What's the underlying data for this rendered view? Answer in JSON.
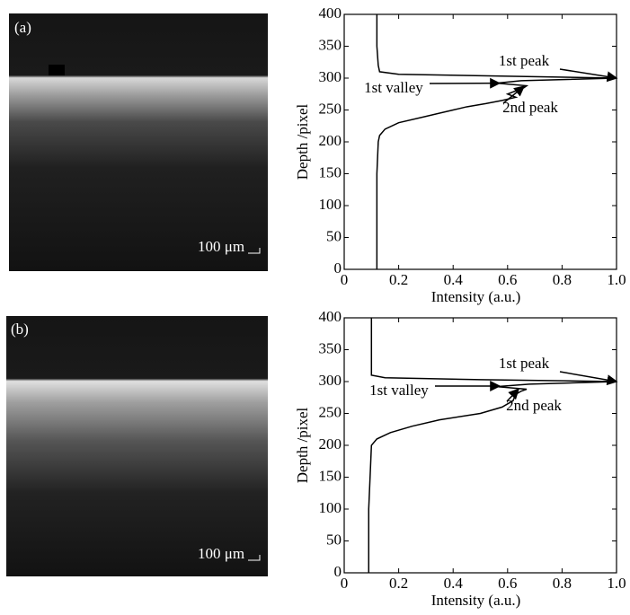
{
  "images": [
    {
      "label": "(a)",
      "scale_bar": "100 μm"
    },
    {
      "label": "(b)",
      "scale_bar": "100 μm"
    }
  ],
  "chart_data": [
    {
      "type": "line",
      "xlabel": "Intensity (a.u.)",
      "ylabel": "Depth /pixel",
      "xlim": [
        0,
        1
      ],
      "xticks": [
        0,
        0.2,
        0.4,
        0.6,
        0.8,
        {
          "value": 1,
          "label": "1.0"
        }
      ],
      "ylim": [
        0,
        400
      ],
      "yticks": [
        0,
        50,
        100,
        150,
        200,
        250,
        300,
        350,
        400
      ],
      "color": "#000000",
      "x": [
        0.12,
        0.12,
        0.12,
        0.12,
        0.125,
        0.13,
        0.15,
        0.2,
        0.3,
        0.4,
        0.45,
        0.52,
        0.58,
        0.63,
        0.6,
        0.63,
        0.66,
        0.67,
        0.56,
        0.65,
        1.0,
        0.6,
        0.2,
        0.13,
        0.125,
        0.12,
        0.12
      ],
      "values": [
        0,
        50,
        100,
        150,
        200,
        210,
        220,
        230,
        240,
        250,
        255,
        260,
        265,
        270,
        275,
        280,
        285,
        288,
        292,
        296,
        300,
        303,
        306,
        310,
        320,
        350,
        400
      ],
      "annotations": [
        {
          "text": "1st peak",
          "x": 1.0,
          "y": 300
        },
        {
          "text": "1st valley",
          "x": 0.57,
          "y": 292
        },
        {
          "text": "2nd peak",
          "x": 0.66,
          "y": 287
        }
      ]
    },
    {
      "type": "line",
      "xlabel": "Intensity (a.u.)",
      "ylabel": "Depth /pixel",
      "xlim": [
        0,
        1
      ],
      "xticks": [
        0,
        0.2,
        0.4,
        0.6,
        0.8,
        {
          "value": 1,
          "label": "1.0"
        }
      ],
      "ylim": [
        0,
        400
      ],
      "yticks": [
        0,
        50,
        100,
        150,
        200,
        250,
        300,
        350,
        400
      ],
      "color": "#000000",
      "x": [
        0.09,
        0.09,
        0.1,
        0.12,
        0.17,
        0.25,
        0.35,
        0.5,
        0.58,
        0.62,
        0.63,
        0.65,
        0.67,
        0.56,
        0.68,
        1.0,
        0.5,
        0.15,
        0.1,
        0.1,
        0.1
      ],
      "values": [
        0,
        100,
        200,
        210,
        220,
        230,
        240,
        250,
        260,
        270,
        280,
        285,
        288,
        292,
        296,
        300,
        303,
        306,
        310,
        350,
        400
      ],
      "annotations": [
        {
          "text": "1st peak",
          "x": 1.0,
          "y": 300
        },
        {
          "text": "1st valley",
          "x": 0.57,
          "y": 293
        },
        {
          "text": "2nd peak",
          "x": 0.64,
          "y": 288
        }
      ]
    }
  ]
}
